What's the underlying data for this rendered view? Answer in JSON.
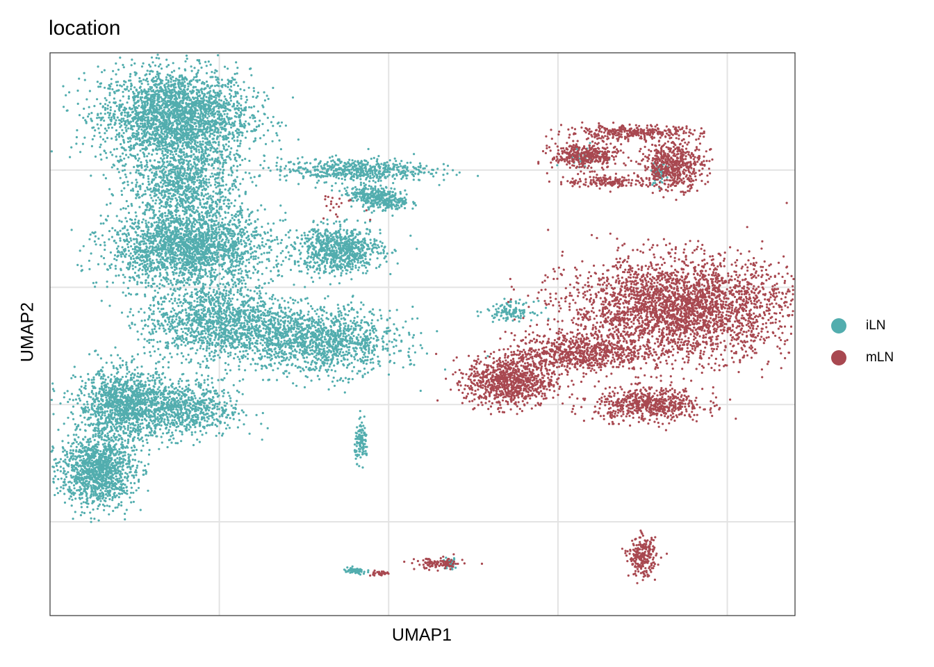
{
  "chart_data": {
    "type": "scatter",
    "title": "location",
    "xlabel": "UMAP1",
    "ylabel": "UMAP2",
    "xlim": [
      -10,
      12
    ],
    "ylim": [
      -14,
      10
    ],
    "x_gridlines": [
      -5,
      0,
      5,
      10
    ],
    "y_gridlines": [
      -10,
      -5,
      0,
      5
    ],
    "grid": true,
    "ticks_labeled": false,
    "legend_position": "right",
    "series": [
      {
        "name": "iLN",
        "color": "#52ADAE",
        "clusters": [
          {
            "cx": -6.3,
            "cy": 7.3,
            "rx": 2.2,
            "ry": 2.0,
            "n": 2600
          },
          {
            "cx": -5.9,
            "cy": 1.7,
            "rx": 2.3,
            "ry": 1.7,
            "n": 2200
          },
          {
            "cx": -1.5,
            "cy": 1.6,
            "rx": 1.3,
            "ry": 1.0,
            "n": 800
          },
          {
            "cx": -6.0,
            "cy": 4.5,
            "rx": 1.6,
            "ry": 1.6,
            "n": 900
          },
          {
            "cx": -5.0,
            "cy": -1.5,
            "rx": 2.2,
            "ry": 1.6,
            "n": 1400
          },
          {
            "cx": -2.0,
            "cy": -2.3,
            "rx": 2.3,
            "ry": 1.4,
            "n": 1300
          },
          {
            "cx": -7.8,
            "cy": -5.0,
            "rx": 1.4,
            "ry": 1.5,
            "n": 1200
          },
          {
            "cx": -8.6,
            "cy": -7.8,
            "rx": 1.1,
            "ry": 1.5,
            "n": 1200
          },
          {
            "cx": -6.0,
            "cy": -5.2,
            "rx": 1.6,
            "ry": 1.2,
            "n": 700
          },
          {
            "cx": -1.0,
            "cy": 5.0,
            "rx": 2.2,
            "ry": 0.5,
            "n": 550
          },
          {
            "cx": -0.5,
            "cy": 4.0,
            "rx": 0.8,
            "ry": 0.3,
            "n": 200
          },
          {
            "cx": -0.1,
            "cy": 3.6,
            "rx": 0.7,
            "ry": 0.35,
            "n": 180
          },
          {
            "cx": -0.8,
            "cy": -6.6,
            "rx": 0.2,
            "ry": 0.8,
            "n": 110
          },
          {
            "cx": -1.0,
            "cy": -12.1,
            "rx": 0.35,
            "ry": 0.15,
            "n": 60
          },
          {
            "cx": 1.8,
            "cy": -11.8,
            "rx": 0.2,
            "ry": 0.25,
            "n": 40
          },
          {
            "cx": 3.6,
            "cy": -1.0,
            "rx": 0.7,
            "ry": 0.4,
            "n": 120
          },
          {
            "cx": 8.0,
            "cy": 4.8,
            "rx": 0.2,
            "ry": 0.5,
            "n": 50
          },
          {
            "cx": 5.7,
            "cy": 5.6,
            "rx": 0.6,
            "ry": 0.4,
            "n": 40
          }
        ]
      },
      {
        "name": "mLN",
        "color": "#A84850",
        "clusters": [
          {
            "cx": 8.6,
            "cy": -0.9,
            "rx": 3.3,
            "ry": 2.1,
            "n": 3000
          },
          {
            "cx": 3.6,
            "cy": -4.0,
            "rx": 1.3,
            "ry": 1.1,
            "n": 900
          },
          {
            "cx": 5.6,
            "cy": -2.8,
            "rx": 1.9,
            "ry": 0.8,
            "n": 700
          },
          {
            "cx": 7.7,
            "cy": -5.0,
            "rx": 1.6,
            "ry": 0.7,
            "n": 600
          },
          {
            "cx": 5.8,
            "cy": 5.6,
            "rx": 1.0,
            "ry": 0.55,
            "n": 380
          },
          {
            "cx": 8.4,
            "cy": 5.2,
            "rx": 0.9,
            "ry": 1.0,
            "n": 550
          },
          {
            "cx": 7.2,
            "cy": 6.6,
            "rx": 2.0,
            "ry": 0.3,
            "n": 320
          },
          {
            "cx": 6.5,
            "cy": 4.5,
            "rx": 1.3,
            "ry": 0.25,
            "n": 160
          },
          {
            "cx": 7.5,
            "cy": -11.5,
            "rx": 0.4,
            "ry": 0.8,
            "n": 240
          },
          {
            "cx": 1.5,
            "cy": -11.8,
            "rx": 0.7,
            "ry": 0.25,
            "n": 110
          },
          {
            "cx": -0.3,
            "cy": -12.2,
            "rx": 0.3,
            "ry": 0.1,
            "n": 30
          },
          {
            "cx": -1.5,
            "cy": 3.5,
            "rx": 0.8,
            "ry": 0.6,
            "n": 20
          }
        ]
      }
    ]
  }
}
